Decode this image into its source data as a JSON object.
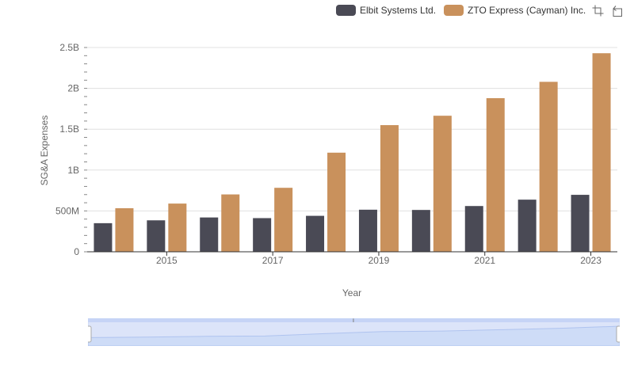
{
  "legend": [
    {
      "name": "Elbit Systems Ltd.",
      "color": "#4a4a55"
    },
    {
      "name": "ZTO Express (Cayman) Inc.",
      "color": "#c9915c"
    }
  ],
  "toolbox": {
    "icons": [
      "zoom-icon",
      "restore-icon"
    ]
  },
  "chart_data": {
    "type": "bar",
    "title": "",
    "xlabel": "Year",
    "ylabel": "SG&A Expenses",
    "categories": [
      "2014",
      "2015",
      "2016",
      "2017",
      "2018",
      "2019",
      "2020",
      "2021",
      "2022",
      "2023"
    ],
    "x_tick_labels": [
      "2015",
      "2017",
      "2019",
      "2021",
      "2023"
    ],
    "y_tick_labels": [
      "0",
      "500M",
      "1B",
      "1.5B",
      "2B",
      "2.5B"
    ],
    "ylim": [
      0,
      2500000000
    ],
    "grid": true,
    "legend_position": "top-right",
    "series": [
      {
        "name": "Elbit Systems Ltd.",
        "color": "#4a4a55",
        "values": [
          350000000,
          385000000,
          420000000,
          412000000,
          440000000,
          515000000,
          512000000,
          560000000,
          638000000,
          697000000
        ]
      },
      {
        "name": "ZTO Express (Cayman) Inc.",
        "color": "#c9915c",
        "values": [
          533000000,
          590000000,
          702000000,
          783000000,
          1213000000,
          1550000000,
          1665000000,
          1880000000,
          2080000000,
          2430000000
        ]
      }
    ]
  },
  "zoom": {
    "start_percent": 0,
    "end_percent": 100,
    "handle_label": "⦀"
  }
}
